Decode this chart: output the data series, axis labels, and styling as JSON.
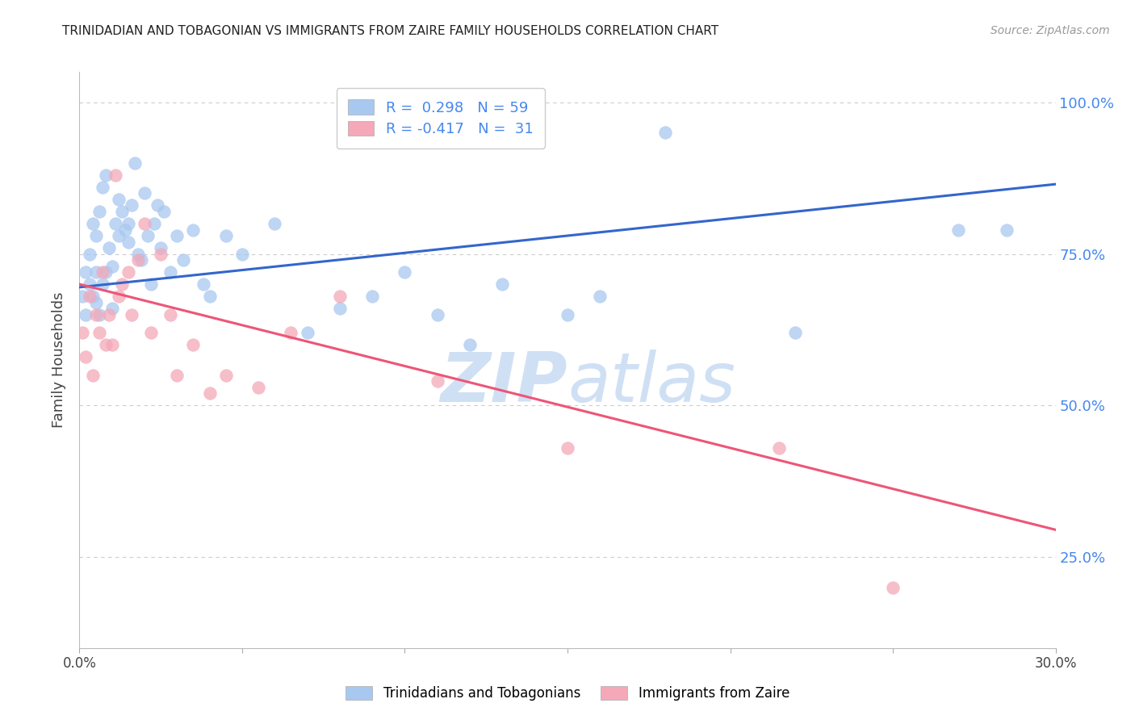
{
  "title": "TRINIDADIAN AND TOBAGONIAN VS IMMIGRANTS FROM ZAIRE FAMILY HOUSEHOLDS CORRELATION CHART",
  "source": "Source: ZipAtlas.com",
  "ylabel": "Family Households",
  "xlim": [
    0.0,
    0.3
  ],
  "ylim": [
    0.1,
    1.05
  ],
  "xticks": [
    0.0,
    0.05,
    0.1,
    0.15,
    0.2,
    0.25,
    0.3
  ],
  "xtick_labels": [
    "0.0%",
    "",
    "",
    "",
    "",
    "",
    "30.0%"
  ],
  "yticks_right": [
    0.25,
    0.5,
    0.75,
    1.0
  ],
  "ytick_right_labels": [
    "25.0%",
    "50.0%",
    "75.0%",
    "100.0%"
  ],
  "blue_R": 0.298,
  "blue_N": 59,
  "pink_R": -0.417,
  "pink_N": 31,
  "blue_color": "#A8C8F0",
  "pink_color": "#F4A8B8",
  "blue_line_color": "#3366CC",
  "pink_line_color": "#EE5577",
  "right_axis_color": "#4488EE",
  "watermark_color": "#D0E0F4",
  "background_color": "#ffffff",
  "grid_color": "#CCCCCC",
  "blue_line_y0": 0.695,
  "blue_line_y1": 0.865,
  "pink_line_y0": 0.7,
  "pink_line_y1": 0.295,
  "blue_scatter_x": [
    0.001,
    0.002,
    0.002,
    0.003,
    0.003,
    0.004,
    0.004,
    0.005,
    0.005,
    0.005,
    0.006,
    0.006,
    0.007,
    0.007,
    0.008,
    0.008,
    0.009,
    0.01,
    0.01,
    0.011,
    0.012,
    0.012,
    0.013,
    0.014,
    0.015,
    0.015,
    0.016,
    0.017,
    0.018,
    0.019,
    0.02,
    0.021,
    0.022,
    0.023,
    0.024,
    0.025,
    0.026,
    0.028,
    0.03,
    0.032,
    0.035,
    0.038,
    0.04,
    0.045,
    0.05,
    0.06,
    0.07,
    0.08,
    0.09,
    0.1,
    0.11,
    0.12,
    0.13,
    0.15,
    0.16,
    0.18,
    0.22,
    0.27,
    0.285
  ],
  "blue_scatter_y": [
    0.68,
    0.72,
    0.65,
    0.7,
    0.75,
    0.68,
    0.8,
    0.67,
    0.72,
    0.78,
    0.65,
    0.82,
    0.7,
    0.86,
    0.88,
    0.72,
    0.76,
    0.73,
    0.66,
    0.8,
    0.84,
    0.78,
    0.82,
    0.79,
    0.8,
    0.77,
    0.83,
    0.9,
    0.75,
    0.74,
    0.85,
    0.78,
    0.7,
    0.8,
    0.83,
    0.76,
    0.82,
    0.72,
    0.78,
    0.74,
    0.79,
    0.7,
    0.68,
    0.78,
    0.75,
    0.8,
    0.62,
    0.66,
    0.68,
    0.72,
    0.65,
    0.6,
    0.7,
    0.65,
    0.68,
    0.95,
    0.62,
    0.79,
    0.79
  ],
  "pink_scatter_x": [
    0.001,
    0.002,
    0.003,
    0.004,
    0.005,
    0.006,
    0.007,
    0.008,
    0.009,
    0.01,
    0.011,
    0.012,
    0.013,
    0.015,
    0.016,
    0.018,
    0.02,
    0.022,
    0.025,
    0.028,
    0.03,
    0.035,
    0.04,
    0.045,
    0.055,
    0.065,
    0.08,
    0.11,
    0.15,
    0.215,
    0.25
  ],
  "pink_scatter_y": [
    0.62,
    0.58,
    0.68,
    0.55,
    0.65,
    0.62,
    0.72,
    0.6,
    0.65,
    0.6,
    0.88,
    0.68,
    0.7,
    0.72,
    0.65,
    0.74,
    0.8,
    0.62,
    0.75,
    0.65,
    0.55,
    0.6,
    0.52,
    0.55,
    0.53,
    0.62,
    0.68,
    0.54,
    0.43,
    0.43,
    0.2
  ],
  "legend_labels": [
    "Trinidadians and Tobagonians",
    "Immigrants from Zaire"
  ]
}
